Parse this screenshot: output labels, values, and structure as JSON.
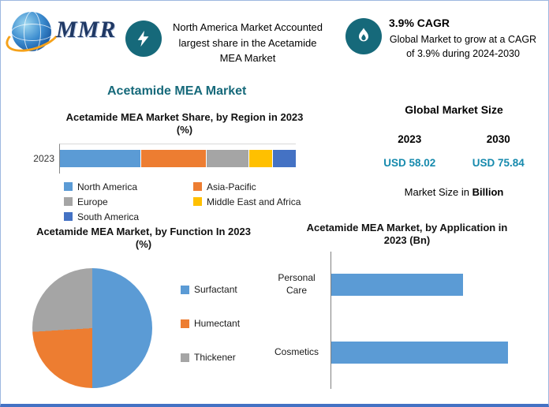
{
  "page": {
    "title": "Acetamide MEA Market",
    "border_color": "#4472c4",
    "accent_teal": "#16697a",
    "value_color": "#168aad",
    "background": "#ffffff"
  },
  "logo": {
    "text": "MMR",
    "icon": "globe-icon"
  },
  "callouts": {
    "share": {
      "icon": "lightning-icon",
      "text": "North America Market Accounted largest share in the Acetamide MEA Market"
    },
    "cagr": {
      "icon": "flame-icon",
      "title": "3.9% CAGR",
      "text": "Global Market to grow at a CAGR of 3.9% during 2024-2030"
    }
  },
  "market_size": {
    "title": "Global Market Size",
    "years": [
      "2023",
      "2030"
    ],
    "values": [
      "USD 58.02",
      "USD 75.84"
    ],
    "note_prefix": "Market Size in",
    "note_unit": "Billion"
  },
  "chart_data": [
    {
      "id": "region_share",
      "type": "bar",
      "subtype": "stacked_horizontal",
      "title": "Acetamide MEA Market Share, by Region in 2023 (%)",
      "categories": [
        "2023"
      ],
      "series": [
        {
          "name": "North America",
          "color": "#5b9bd5",
          "values": [
            34
          ]
        },
        {
          "name": "Asia-Pacific",
          "color": "#ed7d31",
          "values": [
            28
          ]
        },
        {
          "name": "Europe",
          "color": "#a5a5a5",
          "values": [
            18
          ]
        },
        {
          "name": "Middle East and Africa",
          "color": "#ffc000",
          "values": [
            10
          ]
        },
        {
          "name": "South America",
          "color": "#4472c4",
          "values": [
            10
          ]
        }
      ],
      "xlim": [
        0,
        100
      ],
      "legend_position": "bottom",
      "grid": false
    },
    {
      "id": "function_share",
      "type": "pie",
      "title": "Acetamide MEA Market, by Function In 2023 (%)",
      "labels": [
        "Surfactant",
        "Humectant",
        "Thickener"
      ],
      "values": [
        50,
        24,
        26
      ],
      "colors": [
        "#5b9bd5",
        "#ed7d31",
        "#a5a5a5"
      ],
      "legend_position": "right"
    },
    {
      "id": "application_size",
      "type": "bar",
      "subtype": "horizontal",
      "title": "Acetamide MEA Market, by Application in 2023 (Bn)",
      "categories": [
        "Personal Care",
        "Cosmetics"
      ],
      "values": [
        32,
        43
      ],
      "color": "#5b9bd5",
      "grid": false,
      "value_labels_shown": false
    }
  ]
}
